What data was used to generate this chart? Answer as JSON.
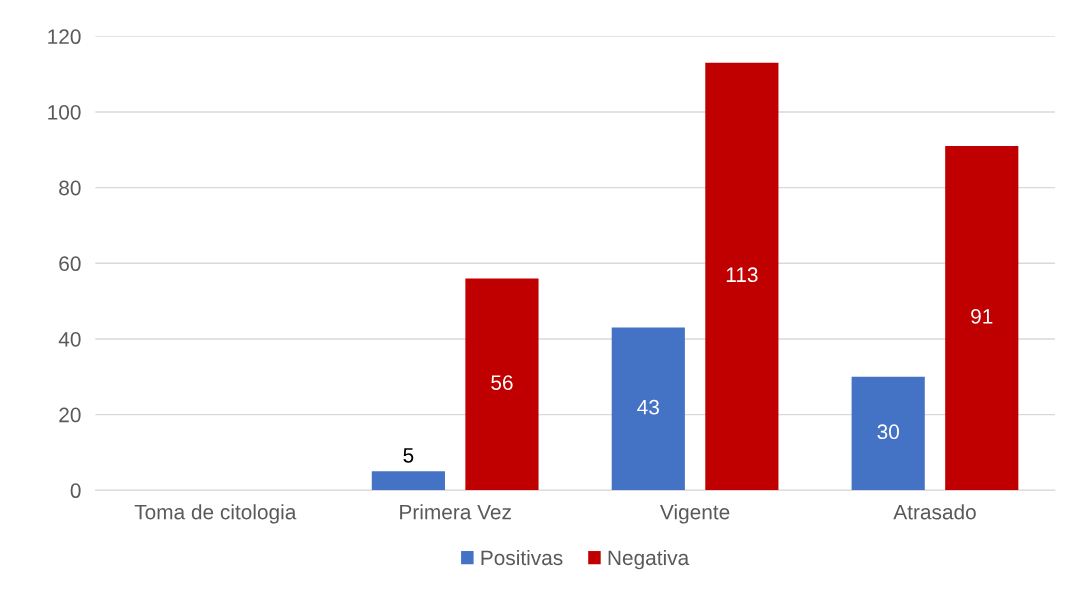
{
  "chart_data": {
    "type": "bar",
    "categories": [
      "Toma de citologia",
      "Primera Vez",
      "Vigente",
      "Atrasado"
    ],
    "series": [
      {
        "name": "Positivas",
        "color": "#4472c4",
        "values": [
          0,
          5,
          43,
          30
        ],
        "value_labels": [
          null,
          "5",
          "43",
          "30"
        ]
      },
      {
        "name": "Negativa",
        "color": "#c00000",
        "values": [
          0,
          56,
          113,
          91
        ],
        "value_labels": [
          null,
          "56",
          "113",
          "91"
        ]
      }
    ],
    "ylim": [
      0,
      120
    ],
    "yticks": [
      0,
      20,
      40,
      60,
      80,
      100,
      120
    ],
    "grid": "y",
    "legend": "bottom"
  }
}
